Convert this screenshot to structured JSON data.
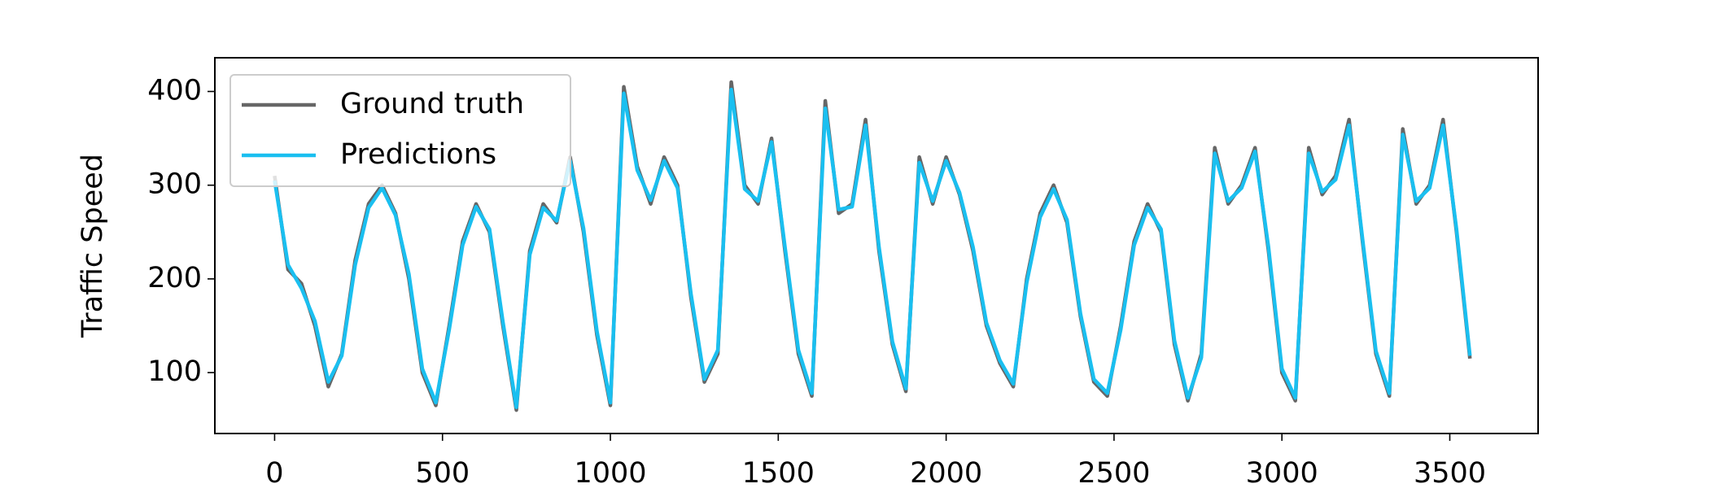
{
  "chart_data": {
    "type": "line",
    "y_label": "Traffic Speed",
    "x": [
      0,
      40,
      80,
      120,
      160,
      200,
      240,
      280,
      320,
      360,
      400,
      440,
      480,
      520,
      560,
      600,
      640,
      680,
      720,
      760,
      800,
      840,
      880,
      920,
      960,
      1000,
      1040,
      1080,
      1120,
      1160,
      1200,
      1240,
      1280,
      1320,
      1360,
      1400,
      1440,
      1480,
      1520,
      1560,
      1600,
      1640,
      1680,
      1720,
      1760,
      1800,
      1840,
      1880,
      1920,
      1960,
      2000,
      2040,
      2080,
      2120,
      2160,
      2200,
      2240,
      2280,
      2320,
      2360,
      2400,
      2440,
      2480,
      2520,
      2560,
      2600,
      2640,
      2680,
      2720,
      2760,
      2800,
      2840,
      2880,
      2920,
      2960,
      3000,
      3040,
      3080,
      3120,
      3160,
      3200,
      3240,
      3280,
      3320,
      3360,
      3400,
      3440,
      3480,
      3520,
      3560
    ],
    "series": [
      {
        "name": "Ground truth",
        "color": "#666666",
        "values": [
          310,
          210,
          195,
          150,
          85,
          120,
          220,
          280,
          300,
          270,
          200,
          100,
          65,
          150,
          240,
          280,
          250,
          150,
          60,
          230,
          280,
          260,
          330,
          250,
          140,
          65,
          405,
          320,
          280,
          330,
          300,
          180,
          90,
          120,
          410,
          300,
          280,
          350,
          230,
          120,
          75,
          390,
          270,
          280,
          370,
          230,
          130,
          80,
          330,
          280,
          330,
          290,
          230,
          150,
          110,
          85,
          200,
          270,
          300,
          260,
          160,
          90,
          75,
          150,
          240,
          280,
          250,
          130,
          70,
          120,
          340,
          280,
          300,
          340,
          230,
          100,
          70,
          340,
          290,
          310,
          370,
          240,
          120,
          75,
          360,
          280,
          300,
          370,
          250,
          115
        ]
      },
      {
        "name": "Predictions",
        "color": "#1abff0",
        "values": [
          305,
          215,
          190,
          155,
          90,
          118,
          215,
          276,
          297,
          268,
          205,
          104,
          68,
          146,
          236,
          277,
          253,
          154,
          63,
          226,
          276,
          262,
          326,
          254,
          144,
          68,
          398,
          316,
          284,
          326,
          297,
          184,
          93,
          124,
          402,
          296,
          283,
          346,
          234,
          124,
          78,
          382,
          274,
          277,
          364,
          234,
          133,
          83,
          324,
          283,
          326,
          292,
          234,
          153,
          113,
          88,
          196,
          266,
          296,
          263,
          163,
          93,
          78,
          146,
          236,
          276,
          253,
          134,
          73,
          116,
          334,
          283,
          297,
          336,
          234,
          104,
          73,
          334,
          293,
          306,
          364,
          243,
          123,
          78,
          354,
          283,
          297,
          364,
          253,
          118
        ]
      }
    ],
    "xlim": [
      -178,
      3763
    ],
    "ylim": [
      35,
      436
    ],
    "xticks": [
      0,
      500,
      1000,
      1500,
      2000,
      2500,
      3000,
      3500
    ],
    "yticks": [
      100,
      200,
      300,
      400
    ],
    "legend": "upper left"
  }
}
